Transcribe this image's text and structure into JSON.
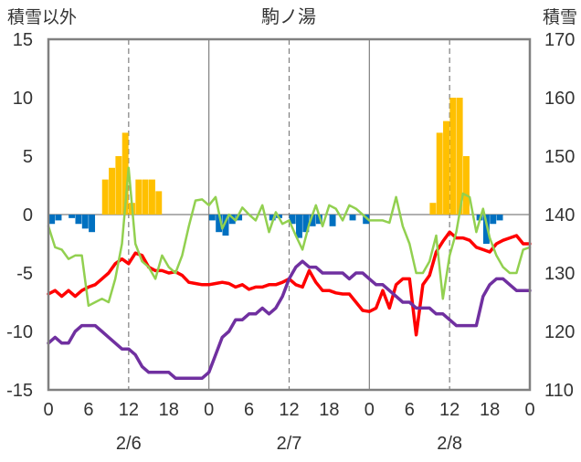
{
  "chart_data": {
    "type": "bar+line",
    "title": "駒ノ湯",
    "ylabel_left": "積雪以外",
    "ylabel_right": "積雪",
    "y_left": {
      "range": [
        -15,
        15
      ],
      "ticks": [
        15,
        10,
        5,
        0,
        -5,
        -10,
        -15
      ]
    },
    "y_right": {
      "range": [
        110,
        170
      ],
      "ticks": [
        170,
        160,
        150,
        140,
        130,
        120,
        110
      ]
    },
    "x": {
      "range": [
        0,
        72
      ],
      "tick_positions": [
        0,
        6,
        12,
        18,
        24,
        30,
        36,
        42,
        48,
        54,
        60,
        66,
        72
      ],
      "tick_labels": [
        "0",
        "6",
        "12",
        "18",
        "0",
        "6",
        "12",
        "18",
        "0",
        "6",
        "12",
        "18",
        "0"
      ],
      "day_positions": [
        12,
        36,
        60
      ],
      "day_labels": [
        "2/6",
        "2/7",
        "2/8"
      ],
      "day_boundaries": [
        24,
        48
      ],
      "dashed_lines": [
        12,
        36,
        60
      ]
    },
    "colors": {
      "snowfall": "#ffc000",
      "snow_change_negative": "#0070c0",
      "temperature": "#ff0000",
      "humidity_like": "#92d050",
      "snow_depth": "#7030a0"
    },
    "series": [
      {
        "type": "bar",
        "color": "#ffc000",
        "axis": "left",
        "values": [
          0,
          0,
          0,
          0,
          0,
          0,
          0,
          0,
          3,
          4,
          5,
          7,
          1,
          3,
          3,
          3,
          2,
          0,
          0,
          0,
          0,
          0,
          0,
          0,
          0,
          0,
          0,
          0,
          0,
          0,
          0,
          0,
          0,
          0,
          0,
          0,
          0,
          0,
          0,
          0,
          0,
          0,
          0,
          0,
          0,
          0,
          0,
          0,
          0,
          0,
          0,
          0,
          0,
          0,
          0,
          0,
          0,
          1,
          7,
          8,
          10,
          10,
          5,
          0,
          0,
          0,
          0,
          0,
          0,
          0,
          0,
          0
        ]
      },
      {
        "type": "bar",
        "color": "#0070c0",
        "axis": "left",
        "values": [
          -0.8,
          -0.5,
          0,
          -0.3,
          -0.8,
          -1.2,
          -1.5,
          0,
          0,
          0,
          0,
          0,
          0,
          0,
          0,
          0,
          0,
          0,
          0,
          0,
          0,
          0,
          0,
          0,
          -0.5,
          -1.5,
          -1.8,
          -0.8,
          -0.5,
          0,
          0,
          0,
          0,
          -0.5,
          -0.3,
          0,
          -0.8,
          -2,
          -1.5,
          -1,
          -0.8,
          0,
          -1,
          0,
          0,
          -0.5,
          0,
          -0.8,
          0,
          0,
          0,
          0,
          0,
          0,
          0,
          0,
          0,
          0,
          0,
          0,
          0,
          0,
          0,
          0,
          -0.5,
          -2.5,
          -0.8,
          -0.5,
          0,
          0,
          0,
          0
        ]
      },
      {
        "type": "line",
        "color": "#ff0000",
        "axis": "left",
        "x": [
          0,
          1,
          2,
          3,
          4,
          5,
          6,
          7,
          8,
          9,
          10,
          11,
          12,
          13,
          14,
          15,
          16,
          17,
          18,
          19,
          20,
          21,
          22,
          23,
          24,
          25,
          26,
          27,
          28,
          29,
          30,
          31,
          32,
          33,
          34,
          35,
          36,
          37,
          38,
          39,
          40,
          41,
          42,
          43,
          44,
          45,
          46,
          47,
          48,
          49,
          50,
          51,
          52,
          53,
          54,
          55,
          56,
          57,
          58,
          59,
          60,
          61,
          62,
          63,
          64,
          65,
          66,
          67,
          68,
          69,
          70,
          71,
          72
        ],
        "values": [
          -6.8,
          -6.5,
          -7,
          -6.5,
          -7,
          -6.5,
          -6.2,
          -6,
          -5.5,
          -5,
          -4.2,
          -3.8,
          -4.2,
          -3.3,
          -3.5,
          -4.5,
          -4.8,
          -4.8,
          -5,
          -4.9,
          -5.2,
          -5.8,
          -5.9,
          -6,
          -6,
          -5.9,
          -5.8,
          -5.9,
          -6.2,
          -6,
          -6.4,
          -6.2,
          -6.2,
          -6,
          -6,
          -5.8,
          -5.5,
          -6,
          -6.2,
          -4.8,
          -5.8,
          -6.5,
          -6.5,
          -6.7,
          -6.8,
          -6.8,
          -7.5,
          -8.2,
          -8.3,
          -8,
          -6.5,
          -8,
          -6,
          -5.5,
          -5.5,
          -10.3,
          -6,
          -5.2,
          -3.2,
          -2.3,
          -1.5,
          -2,
          -2,
          -2.2,
          -2.8,
          -3,
          -3.2,
          -2.5,
          -2.2,
          -2,
          -1.8,
          -2.5,
          -2.5
        ]
      },
      {
        "type": "line",
        "color": "#92d050",
        "axis": "left",
        "x": [
          0,
          1,
          2,
          3,
          4,
          5,
          6,
          7,
          8,
          9,
          10,
          11,
          12,
          13,
          14,
          15,
          16,
          17,
          18,
          19,
          20,
          21,
          22,
          23,
          24,
          25,
          26,
          27,
          28,
          29,
          30,
          31,
          32,
          33,
          34,
          35,
          36,
          37,
          38,
          39,
          40,
          41,
          42,
          43,
          44,
          45,
          46,
          47,
          48,
          49,
          50,
          51,
          52,
          53,
          54,
          55,
          56,
          57,
          58,
          59,
          60,
          61,
          62,
          63,
          64,
          65,
          66,
          67,
          68,
          69,
          70,
          71,
          72
        ],
        "values": [
          -1,
          -2.8,
          -3,
          -3.8,
          -3.5,
          -3.5,
          -7.8,
          -7.5,
          -7.2,
          -7.5,
          -5.5,
          -2.5,
          4,
          -2.5,
          -4,
          -4.5,
          -5.5,
          -3.5,
          -4.5,
          -5,
          -3.5,
          -1,
          1.2,
          1.3,
          0.8,
          1.5,
          -1.2,
          0,
          -0.5,
          0.6,
          0,
          -0.5,
          0.8,
          -1.5,
          0.2,
          -0.8,
          -0.5,
          -1.8,
          -3,
          -0.8,
          0.8,
          -1,
          0.8,
          0.5,
          -0.5,
          0.8,
          0.5,
          0,
          -0.5,
          -0.5,
          -0.5,
          -0.7,
          1.5,
          -1,
          -2.5,
          -5,
          -5,
          -4,
          -1.8,
          -7.2,
          -3.5,
          -1.5,
          1.8,
          1.5,
          -1.5,
          0.5,
          -2,
          -3.5,
          -4.5,
          -5,
          -5,
          -3,
          -2.8
        ]
      },
      {
        "type": "line",
        "color": "#7030a0",
        "axis": "right",
        "x": [
          0,
          1,
          2,
          3,
          4,
          5,
          6,
          7,
          8,
          9,
          10,
          11,
          12,
          13,
          14,
          15,
          16,
          17,
          18,
          19,
          20,
          21,
          22,
          23,
          24,
          25,
          26,
          27,
          28,
          29,
          30,
          31,
          32,
          33,
          34,
          35,
          36,
          37,
          38,
          39,
          40,
          41,
          42,
          43,
          44,
          45,
          46,
          47,
          48,
          49,
          50,
          51,
          52,
          53,
          54,
          55,
          56,
          57,
          58,
          59,
          60,
          61,
          62,
          63,
          64,
          65,
          66,
          67,
          68,
          69,
          70,
          71,
          72
        ],
        "values": [
          118,
          119,
          118,
          118,
          120,
          121,
          121,
          121,
          120,
          119,
          118,
          117,
          117,
          116,
          114,
          113,
          113,
          113,
          113,
          112,
          112,
          112,
          112,
          112,
          113,
          116,
          119,
          120,
          122,
          122,
          123,
          123,
          124,
          123,
          124,
          126,
          129,
          131,
          132,
          131,
          131,
          130,
          130,
          130,
          130,
          129,
          130,
          130,
          129,
          128,
          128,
          127,
          126,
          125,
          125,
          124,
          124,
          124,
          123,
          123,
          122,
          121,
          121,
          121,
          121,
          126,
          128,
          129,
          129,
          128,
          127,
          127,
          127
        ]
      }
    ]
  }
}
